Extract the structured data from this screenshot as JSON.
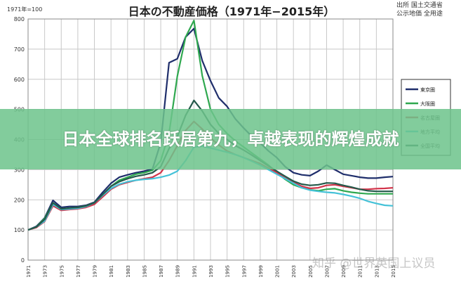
{
  "banner": {
    "headline": "日本全球排名跃居第九，卓越表现的辉煌成就"
  },
  "watermark": {
    "text": "知乎 @世界英国上议员"
  },
  "chart_data": {
    "type": "line",
    "title": "日本の不動産価格（1971年−2015年）",
    "index_note": "1971年=100",
    "source_lines": [
      "出所 国土交通省",
      "公示地価 全用途"
    ],
    "ylim": [
      0,
      800
    ],
    "yticks": [
      0,
      100,
      200,
      300,
      400,
      500,
      600,
      700,
      800
    ],
    "xlim": [
      1971,
      2015
    ],
    "xticks": [
      1971,
      1973,
      1975,
      1977,
      1979,
      1981,
      1983,
      1985,
      1987,
      1989,
      1991,
      1993,
      1995,
      1997,
      1999,
      2001,
      2003,
      2005,
      2007,
      2009,
      2011,
      2013,
      2015
    ],
    "grid": true,
    "legend_position": "right",
    "series": [
      {
        "name": "東京圏",
        "color": "#1f2e6b",
        "x": [
          1971,
          1972,
          1973,
          1974,
          1975,
          1976,
          1977,
          1978,
          1979,
          1980,
          1981,
          1982,
          1983,
          1984,
          1985,
          1986,
          1987,
          1988,
          1989,
          1990,
          1991,
          1992,
          1993,
          1994,
          1995,
          1996,
          1997,
          1998,
          1999,
          2000,
          2001,
          2002,
          2003,
          2004,
          2005,
          2006,
          2007,
          2008,
          2009,
          2010,
          2011,
          2012,
          2013,
          2014,
          2015
        ],
        "values": [
          100,
          112,
          140,
          198,
          175,
          178,
          178,
          182,
          192,
          225,
          255,
          275,
          283,
          290,
          295,
          302,
          390,
          655,
          668,
          740,
          768,
          662,
          595,
          538,
          510,
          468,
          438,
          410,
          388,
          362,
          340,
          310,
          290,
          283,
          280,
          295,
          315,
          300,
          285,
          280,
          275,
          272,
          272,
          275,
          277
        ]
      },
      {
        "name": "大阪圏",
        "color": "#2fa84f",
        "x": [
          1971,
          1972,
          1973,
          1974,
          1975,
          1976,
          1977,
          1978,
          1979,
          1980,
          1981,
          1982,
          1983,
          1984,
          1985,
          1986,
          1987,
          1988,
          1989,
          1990,
          1991,
          1992,
          1993,
          1994,
          1995,
          1996,
          1997,
          1998,
          1999,
          2000,
          2001,
          2002,
          2003,
          2004,
          2005,
          2006,
          2007,
          2008,
          2009,
          2010,
          2011,
          2012,
          2013,
          2014,
          2015
        ],
        "values": [
          100,
          110,
          138,
          190,
          170,
          172,
          175,
          180,
          190,
          215,
          245,
          265,
          275,
          285,
          290,
          298,
          330,
          420,
          610,
          740,
          795,
          612,
          500,
          450,
          420,
          395,
          375,
          355,
          335,
          315,
          290,
          268,
          250,
          240,
          233,
          230,
          235,
          237,
          230,
          225,
          222,
          220,
          220,
          220,
          220
        ]
      },
      {
        "name": "名古屋圏",
        "color": "#d2354b",
        "x": [
          1971,
          1972,
          1973,
          1974,
          1975,
          1976,
          1977,
          1978,
          1979,
          1980,
          1981,
          1982,
          1983,
          1984,
          1985,
          1986,
          1987,
          1988,
          1989,
          1990,
          1991,
          1992,
          1993,
          1994,
          1995,
          1996,
          1997,
          1998,
          1999,
          2000,
          2001,
          2002,
          2003,
          2004,
          2005,
          2006,
          2007,
          2008,
          2009,
          2010,
          2011,
          2012,
          2013,
          2014,
          2015
        ],
        "values": [
          100,
          108,
          128,
          180,
          165,
          168,
          170,
          175,
          185,
          210,
          235,
          250,
          258,
          265,
          270,
          275,
          290,
          330,
          380,
          430,
          460,
          435,
          405,
          382,
          362,
          350,
          340,
          330,
          320,
          305,
          290,
          272,
          258,
          245,
          238,
          240,
          248,
          250,
          245,
          240,
          235,
          235,
          237,
          238,
          240
        ]
      },
      {
        "name": "地方平均",
        "color": "#45c2d8",
        "x": [
          1971,
          1972,
          1973,
          1974,
          1975,
          1976,
          1977,
          1978,
          1979,
          1980,
          1981,
          1982,
          1983,
          1984,
          1985,
          1986,
          1987,
          1988,
          1989,
          1990,
          1991,
          1992,
          1993,
          1994,
          1995,
          1996,
          1997,
          1998,
          1999,
          2000,
          2001,
          2002,
          2003,
          2004,
          2005,
          2006,
          2007,
          2008,
          2009,
          2010,
          2011,
          2012,
          2013,
          2014,
          2015
        ],
        "values": [
          100,
          110,
          130,
          185,
          168,
          170,
          172,
          178,
          190,
          215,
          238,
          252,
          260,
          265,
          268,
          270,
          275,
          282,
          295,
          330,
          375,
          378,
          372,
          365,
          358,
          350,
          340,
          328,
          315,
          300,
          285,
          270,
          255,
          240,
          232,
          228,
          225,
          223,
          218,
          212,
          205,
          195,
          188,
          182,
          180
        ]
      },
      {
        "name": "全国平均",
        "color": "#24594a",
        "x": [
          1971,
          1972,
          1973,
          1974,
          1975,
          1976,
          1977,
          1978,
          1979,
          1980,
          1981,
          1982,
          1983,
          1984,
          1985,
          1986,
          1987,
          1988,
          1989,
          1990,
          1991,
          1992,
          1993,
          1994,
          1995,
          1996,
          1997,
          1998,
          1999,
          2000,
          2001,
          2002,
          2003,
          2004,
          2005,
          2006,
          2007,
          2008,
          2009,
          2010,
          2011,
          2012,
          2013,
          2014,
          2015
        ],
        "values": [
          100,
          110,
          135,
          190,
          170,
          173,
          175,
          180,
          190,
          218,
          245,
          260,
          270,
          278,
          283,
          290,
          310,
          370,
          410,
          480,
          530,
          495,
          450,
          420,
          400,
          380,
          365,
          348,
          330,
          312,
          295,
          278,
          262,
          252,
          248,
          250,
          256,
          255,
          248,
          242,
          235,
          230,
          228,
          228,
          228
        ]
      }
    ]
  }
}
